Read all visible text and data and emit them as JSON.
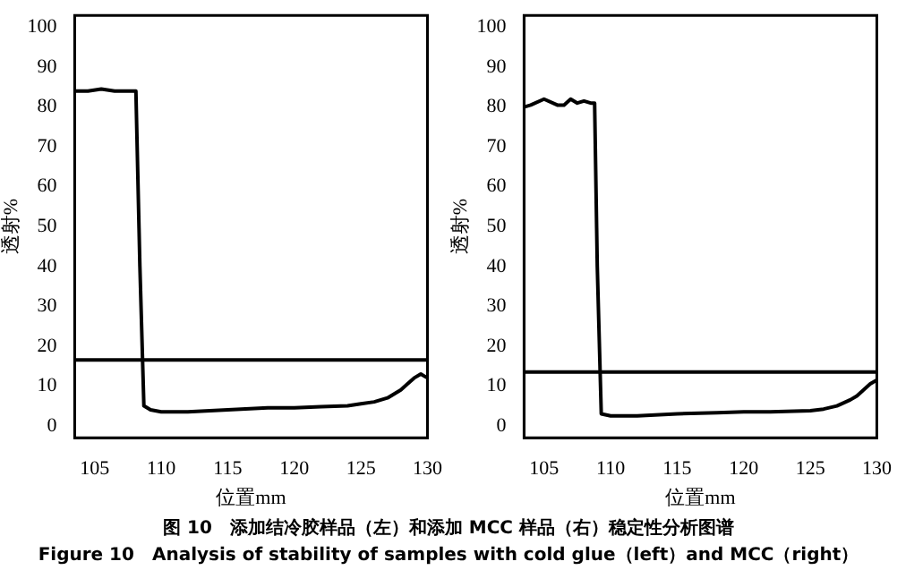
{
  "chart_data": [
    {
      "type": "line",
      "xlabel": "位置mm",
      "ylabel": "透射%",
      "xlim": [
        103.5,
        130
      ],
      "ylim": [
        -3,
        103
      ],
      "xticks": [
        105,
        110,
        115,
        120,
        125,
        130
      ],
      "yticks": [
        0,
        10,
        20,
        30,
        40,
        50,
        60,
        70,
        80,
        90,
        100
      ],
      "grid": false,
      "legend": false,
      "marker": "none",
      "series": [
        {
          "color": "#000000",
          "x": [
            103.5,
            104.5,
            105.5,
            106.5,
            107.5,
            108.1,
            108.4,
            108.7,
            109.2,
            110,
            112,
            115,
            118,
            120,
            122,
            124,
            125,
            126,
            127,
            128,
            128.5,
            129,
            129.5,
            130
          ],
          "values": [
            84,
            84,
            84.5,
            84,
            84,
            84,
            40,
            5,
            4,
            3.5,
            3.5,
            4,
            4.5,
            4.5,
            4.8,
            5,
            5.5,
            6,
            7,
            9,
            10.5,
            12,
            13,
            12
          ]
        }
      ],
      "ref_lines": [
        {
          "axis": "y",
          "value": 16.5,
          "color": "#000000"
        }
      ],
      "annotations": [
        "图 10　添加结冷胶样品（左）和添加 MCC 样品（右）稳定性分析图谱",
        "Figure 10　Analysis of stability of samples with cold glue（left）and MCC（right）"
      ]
    },
    {
      "type": "line",
      "xlabel": "位置mm",
      "ylabel": "透射%",
      "xlim": [
        103.5,
        130
      ],
      "ylim": [
        -3,
        103
      ],
      "xticks": [
        105,
        110,
        115,
        120,
        125,
        130
      ],
      "yticks": [
        0,
        10,
        20,
        30,
        40,
        50,
        60,
        70,
        80,
        90,
        100
      ],
      "grid": false,
      "legend": false,
      "marker": "none",
      "series": [
        {
          "color": "#000000",
          "x": [
            103.5,
            104,
            105,
            106,
            106.5,
            107,
            107.5,
            108,
            108.5,
            108.8,
            109,
            109.3,
            110,
            112,
            115,
            118,
            120,
            122,
            125,
            126,
            127,
            128,
            128.5,
            129,
            129.5,
            130
          ],
          "values": [
            80,
            80.5,
            82,
            80.5,
            80.5,
            82,
            81,
            81.5,
            81,
            81,
            40,
            3,
            2.5,
            2.5,
            3,
            3.3,
            3.5,
            3.5,
            3.8,
            4.2,
            5,
            6.5,
            7.5,
            9,
            10.5,
            11.5
          ]
        }
      ],
      "ref_lines": [
        {
          "axis": "y",
          "value": 13.5,
          "color": "#000000"
        }
      ]
    }
  ]
}
